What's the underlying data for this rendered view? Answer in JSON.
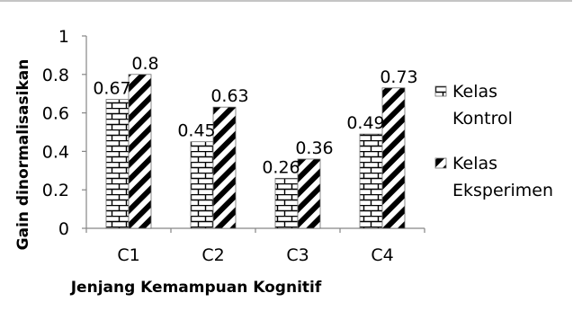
{
  "chart_data": {
    "type": "bar",
    "title": "",
    "xlabel": "Jenjang Kemampuan Kognitif",
    "ylabel": "Gain dinormalisasikan",
    "categories": [
      "C1",
      "C2",
      "C3",
      "C4"
    ],
    "series": [
      {
        "name": "Kelas Kontrol",
        "legend_lines": [
          "Kelas",
          "Kontrol"
        ],
        "pattern": "bricks",
        "values": [
          0.67,
          0.45,
          0.26,
          0.49
        ],
        "labels": [
          "0.67",
          "0.45",
          "0.26",
          "0.49"
        ]
      },
      {
        "name": "Kelas Eksperimen",
        "legend_lines": [
          "Kelas",
          "Eksperimen"
        ],
        "pattern": "diagonal-stripes",
        "values": [
          0.8,
          0.63,
          0.36,
          0.73
        ],
        "labels": [
          "0.8",
          "0.63",
          "0.36",
          "0.73"
        ]
      }
    ],
    "ylim": [
      0,
      1
    ],
    "yticks": [
      "0",
      "0.2",
      "0.4",
      "0.6",
      "0.8",
      "1"
    ],
    "grid": false,
    "legend_position": "right"
  }
}
